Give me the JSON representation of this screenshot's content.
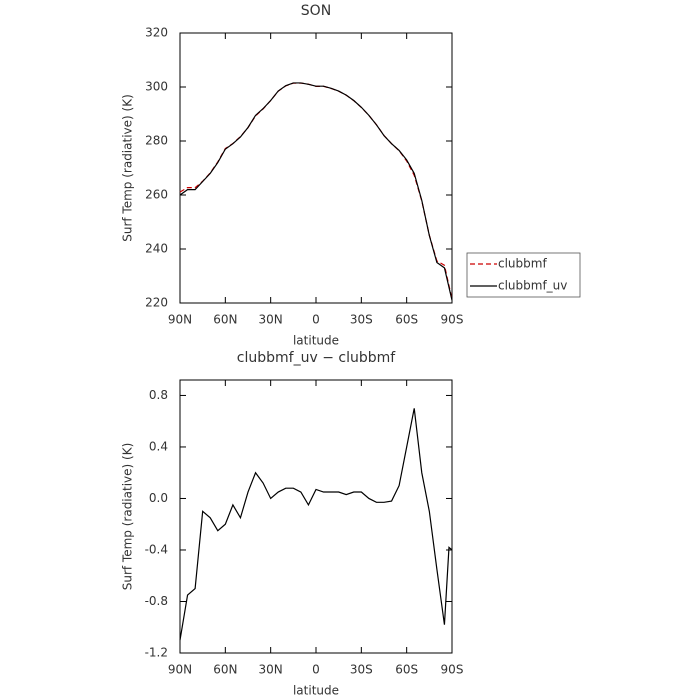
{
  "chart_data": [
    {
      "type": "line",
      "title": "SON",
      "xlabel": "latitude",
      "ylabel": "Surf Temp (radiative) (K)",
      "x": [
        90,
        85,
        80,
        75,
        70,
        65,
        60,
        55,
        50,
        45,
        40,
        35,
        30,
        25,
        20,
        15,
        10,
        5,
        0,
        -5,
        -10,
        -15,
        -20,
        -25,
        -30,
        -35,
        -40,
        -45,
        -50,
        -55,
        -60,
        -65,
        -70,
        -75,
        -80,
        -85,
        -90
      ],
      "series": [
        {
          "name": "clubbmf",
          "color": "#cc0000",
          "linestyle": "dashed",
          "values": [
            261.1,
            262.75,
            262.7,
            265.1,
            268.15,
            272.25,
            277.2,
            279.05,
            281.65,
            284.95,
            289.3,
            291.88,
            295,
            298.45,
            300.42,
            301.42,
            301.45,
            301.05,
            300.23,
            300.25,
            299.45,
            298.45,
            296.97,
            294.95,
            292.45,
            289.5,
            286.03,
            282.03,
            279.02,
            276.4,
            272.6,
            267.3,
            257.8,
            245.1,
            235.55,
            233.98,
            221.4
          ]
        },
        {
          "name": "clubbmf_uv",
          "color": "#000000",
          "linestyle": "solid",
          "values": [
            260,
            262,
            262,
            265,
            268,
            272,
            277,
            279,
            281.5,
            285,
            289.5,
            292,
            295,
            298.5,
            300.5,
            301.5,
            301.5,
            301,
            300.3,
            300.3,
            299.5,
            298.5,
            297,
            295,
            292.5,
            289.5,
            286,
            282,
            279,
            276.5,
            273,
            268,
            258,
            245,
            235,
            233,
            221
          ]
        }
      ],
      "xlim": [
        90,
        -90
      ],
      "xticks": [
        {
          "value": 90,
          "label": "90N"
        },
        {
          "value": 60,
          "label": "60N"
        },
        {
          "value": 30,
          "label": "30N"
        },
        0,
        {
          "value": -30,
          "label": "30S"
        },
        {
          "value": -60,
          "label": "60S"
        },
        {
          "value": -90,
          "label": "90S"
        }
      ],
      "ylim": [
        220,
        320
      ],
      "yticks": [
        220,
        240,
        260,
        280,
        300,
        320
      ],
      "legend": "right"
    },
    {
      "type": "line",
      "title": "clubbmf_uv − clubbmf",
      "xlabel": "latitude",
      "ylabel": "Surf Temp (radiative) (K)",
      "x": [
        90,
        85,
        80,
        75,
        70,
        65,
        60,
        55,
        50,
        45,
        40,
        35,
        30,
        25,
        20,
        15,
        10,
        5,
        0,
        -5,
        -10,
        -15,
        -20,
        -25,
        -30,
        -35,
        -40,
        -45,
        -50,
        -55,
        -60,
        -65,
        -70,
        -75,
        -80,
        -85,
        -88,
        -90
      ],
      "series": [
        {
          "color": "#000000",
          "linestyle": "solid",
          "values": [
            -1.1,
            -0.75,
            -0.7,
            -0.1,
            -0.15,
            -0.25,
            -0.2,
            -0.05,
            -0.15,
            0.05,
            0.2,
            0.12,
            0.0,
            0.05,
            0.08,
            0.08,
            0.05,
            -0.05,
            0.07,
            0.05,
            0.05,
            0.05,
            0.03,
            0.05,
            0.05,
            0.0,
            -0.03,
            -0.03,
            -0.02,
            0.1,
            0.4,
            0.7,
            0.2,
            -0.1,
            -0.55,
            -0.98,
            -0.38,
            -0.4
          ]
        }
      ],
      "xlim": [
        90,
        -90
      ],
      "xticks": [
        {
          "value": 90,
          "label": "90N"
        },
        {
          "value": 60,
          "label": "60N"
        },
        {
          "value": 30,
          "label": "30N"
        },
        0,
        {
          "value": -30,
          "label": "30S"
        },
        {
          "value": -60,
          "label": "60S"
        },
        {
          "value": -90,
          "label": "90S"
        }
      ],
      "ylim": [
        -1.2,
        0.92
      ],
      "yticks": [
        -1.2,
        -0.8,
        -0.4,
        {
          "value": 0,
          "label": "0.0"
        },
        0.4,
        0.8
      ]
    }
  ]
}
